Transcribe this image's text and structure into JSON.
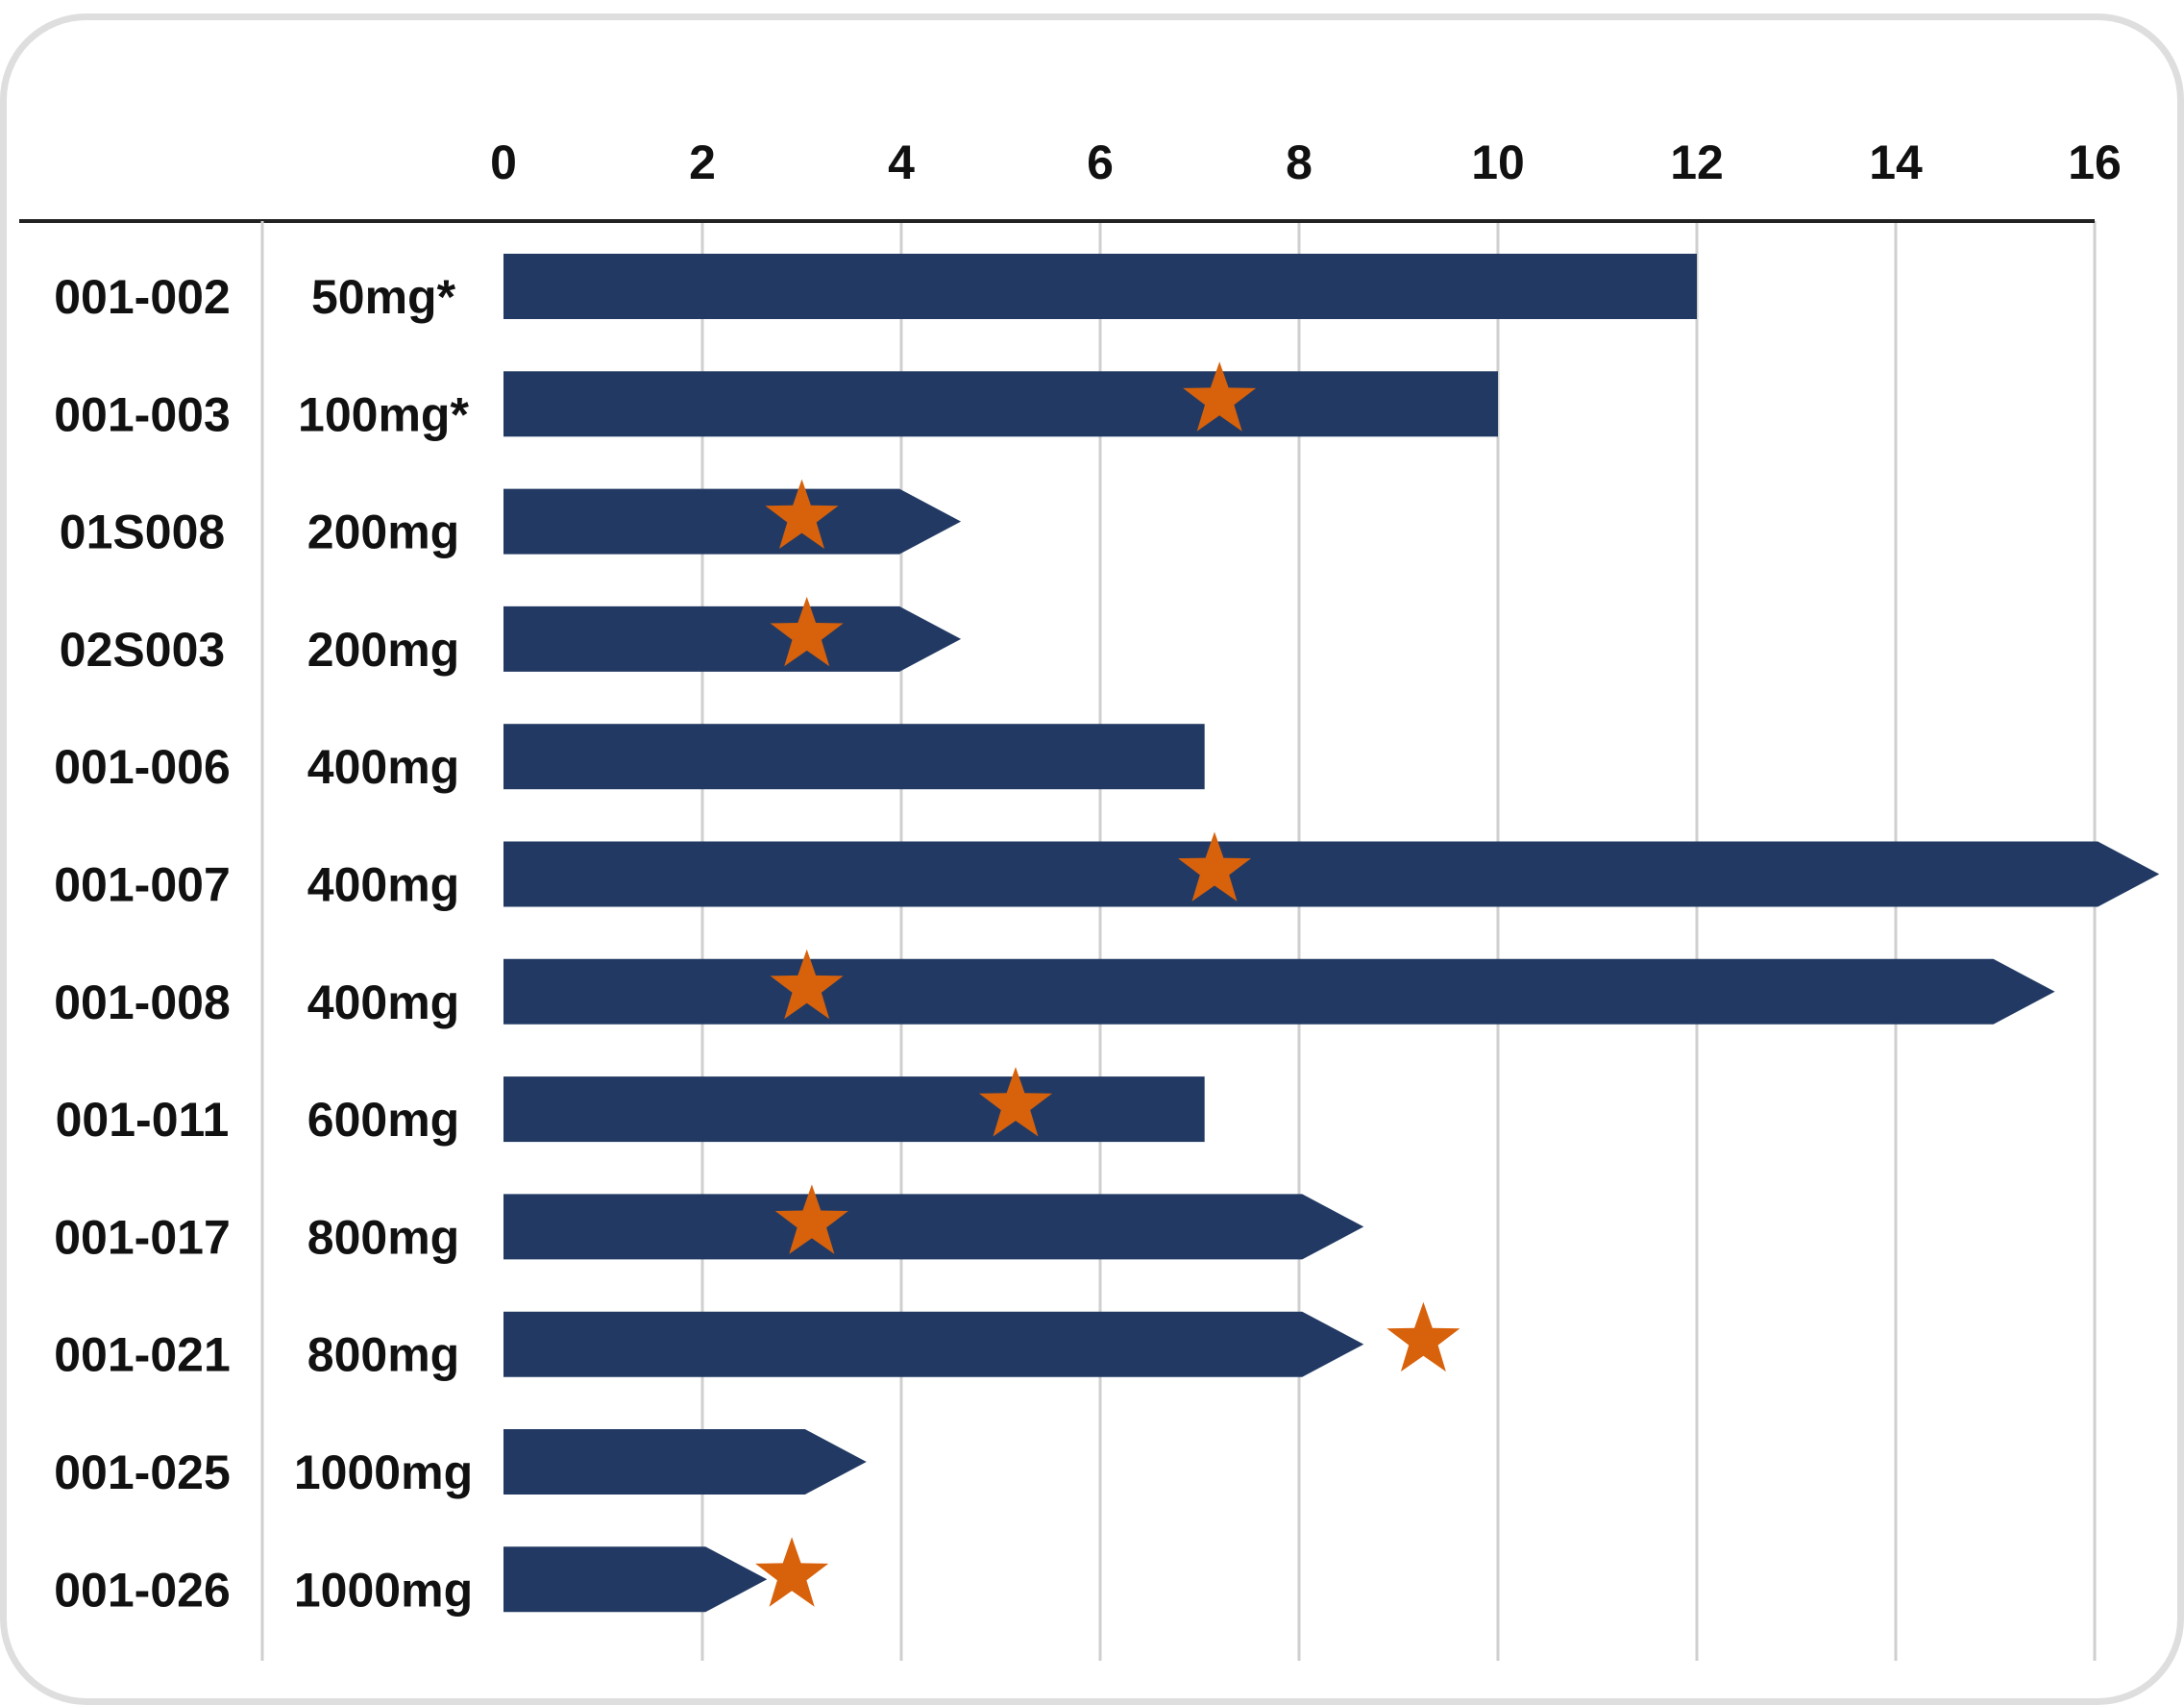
{
  "chart_data": {
    "type": "bar",
    "orientation": "horizontal",
    "x_ticks": [
      "0",
      "2",
      "4",
      "6",
      "8",
      "10",
      "12",
      "14",
      "16"
    ],
    "xlim": [
      0,
      16
    ],
    "grid": true,
    "rows": [
      {
        "id": "001-002",
        "dose": "50mg*",
        "value": 12.0,
        "ongoing": false,
        "star": null
      },
      {
        "id": "001-003",
        "dose": "100mg*",
        "value": 10.0,
        "ongoing": false,
        "star": 7.2
      },
      {
        "id": "01S008",
        "dose": "200mg",
        "value": 4.6,
        "ongoing": true,
        "star": 3.0
      },
      {
        "id": "02S003",
        "dose": "200mg",
        "value": 4.6,
        "ongoing": true,
        "star": 3.05
      },
      {
        "id": "001-006",
        "dose": "400mg",
        "value": 7.05,
        "ongoing": false,
        "star": null
      },
      {
        "id": "001-007",
        "dose": "400mg",
        "value": 16.65,
        "ongoing": true,
        "star": 7.15
      },
      {
        "id": "001-008",
        "dose": "400mg",
        "value": 15.6,
        "ongoing": true,
        "star": 3.05
      },
      {
        "id": "001-011",
        "dose": "600mg",
        "value": 7.05,
        "ongoing": false,
        "star": 5.15
      },
      {
        "id": "001-017",
        "dose": "800mg",
        "value": 8.65,
        "ongoing": true,
        "star": 3.1
      },
      {
        "id": "001-021",
        "dose": "800mg",
        "value": 8.65,
        "ongoing": true,
        "star": 9.25
      },
      {
        "id": "001-025",
        "dose": "1000mg",
        "value": 3.65,
        "ongoing": true,
        "star": null
      },
      {
        "id": "001-026",
        "dose": "1000mg",
        "value": 2.65,
        "ongoing": true,
        "star": 2.9
      }
    ],
    "colors": {
      "bar": "#223a63",
      "star": "#d8610b",
      "grid": "#cfcfcf",
      "axis": "#222222",
      "text": "#111111"
    }
  }
}
